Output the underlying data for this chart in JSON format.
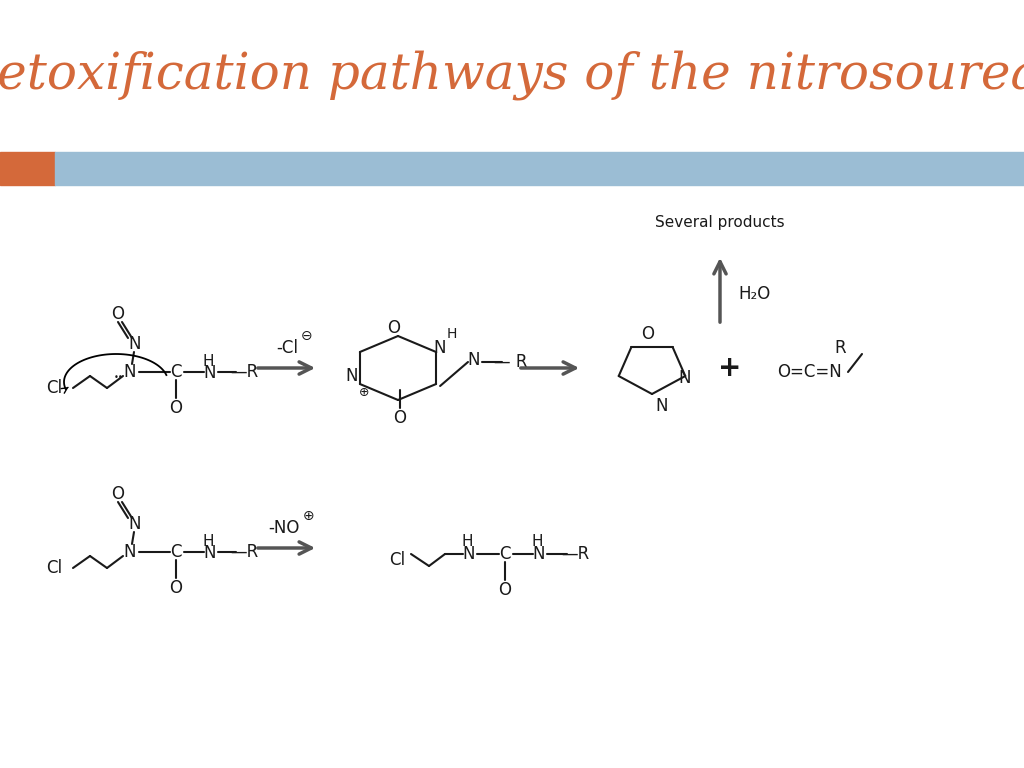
{
  "title": "Detoxification pathways of the nitrosoureas",
  "title_color": "#D4693A",
  "title_fontsize": 36,
  "bg_color": "#FFFFFF",
  "bar_orange_color": "#D4693A",
  "bar_blue_color": "#9BBDD4",
  "text_color": "#1a1a1a",
  "arrow_color": "#555555",
  "several_products": "Several products",
  "h2o": "H₂O",
  "circ_plus": "⊕",
  "circ_minus": "⊖"
}
